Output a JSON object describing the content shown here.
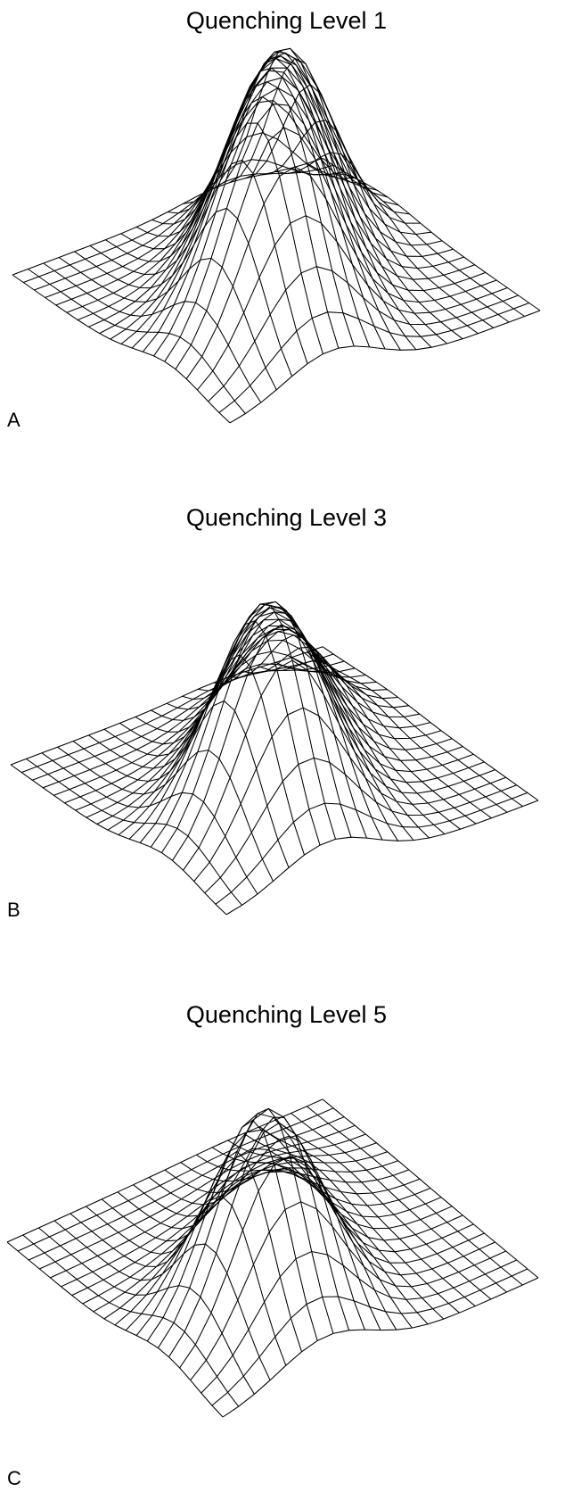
{
  "figure": {
    "colors": {
      "background": "#ffffff",
      "mesh_line": "#000000",
      "text": "#000000"
    }
  },
  "chart_data": [
    {
      "type": "surface",
      "panel_label": "A",
      "title": "Quenching Level 1",
      "grid_size": [
        21,
        21
      ],
      "xlim": [
        0,
        20
      ],
      "ylim": [
        0,
        20
      ],
      "zlim": [
        0,
        1
      ],
      "grid": true,
      "peaks": [
        {
          "x": 6.5,
          "y": 5.5,
          "height": 1.0,
          "width": 3.0
        },
        {
          "x": 10.0,
          "y": 10.0,
          "height": 0.88,
          "width": 2.8
        },
        {
          "x": 13.5,
          "y": 14.0,
          "height": 0.78,
          "width": 2.6
        }
      ]
    },
    {
      "type": "surface",
      "panel_label": "B",
      "title": "Quenching Level 3",
      "grid_size": [
        21,
        21
      ],
      "xlim": [
        0,
        20
      ],
      "ylim": [
        0,
        20
      ],
      "zlim": [
        0,
        1
      ],
      "grid": true,
      "peaks": [
        {
          "x": 6.5,
          "y": 5.5,
          "height": 1.0,
          "width": 3.0
        },
        {
          "x": 10.0,
          "y": 10.0,
          "height": 0.62,
          "width": 2.8
        },
        {
          "x": 13.5,
          "y": 14.0,
          "height": 0.38,
          "width": 2.6
        }
      ]
    },
    {
      "type": "surface",
      "panel_label": "C",
      "title": "Quenching Level 5",
      "grid_size": [
        21,
        21
      ],
      "xlim": [
        0,
        20
      ],
      "ylim": [
        0,
        20
      ],
      "zlim": [
        0,
        1
      ],
      "grid": true,
      "peaks": [
        {
          "x": 6.5,
          "y": 5.5,
          "height": 1.0,
          "width": 3.0
        },
        {
          "x": 10.0,
          "y": 10.0,
          "height": 0.3,
          "width": 2.8
        },
        {
          "x": 13.5,
          "y": 14.0,
          "height": 0.13,
          "width": 2.6
        }
      ]
    }
  ]
}
